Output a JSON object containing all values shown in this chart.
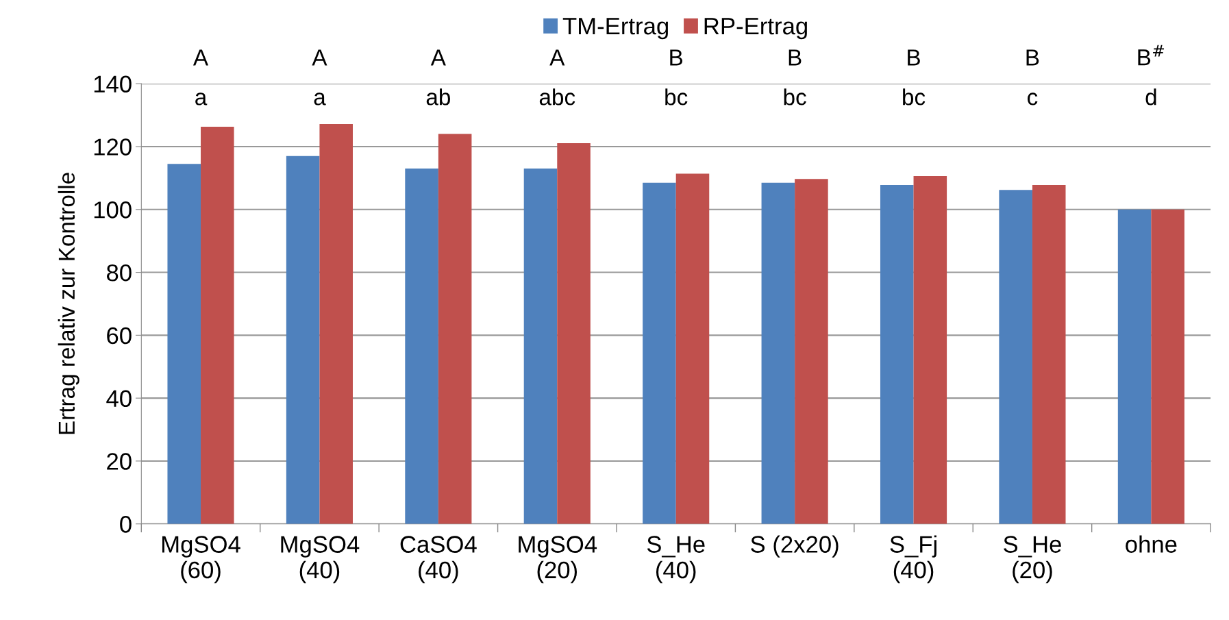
{
  "chart_data": {
    "type": "bar",
    "ylabel": "Ertrag relativ zur Kontrolle",
    "categories": [
      "MgSO4\n(60)",
      "MgSO4\n(40)",
      "CaSO4\n(40)",
      "MgSO4\n(20)",
      "S_He\n(40)",
      "S (2x20)",
      "S_Fj\n(40)",
      "S_He\n(20)",
      "ohne"
    ],
    "series": [
      {
        "name": "TM-Ertrag",
        "color": "#4f81bd",
        "values": [
          114.5,
          117,
          113,
          113,
          108.5,
          108.5,
          107.8,
          106.2,
          100
        ]
      },
      {
        "name": "RP-Ertrag",
        "color": "#c0504d",
        "values": [
          126.3,
          127.2,
          124,
          121.1,
          111.4,
          109.7,
          110.6,
          107.8,
          100
        ]
      }
    ],
    "ylim": [
      0,
      140
    ],
    "yticks": [
      0,
      20,
      40,
      60,
      80,
      100,
      120,
      140
    ],
    "grid": "y",
    "legend": "top",
    "annotations": [
      "A",
      "A",
      "A",
      "A",
      "B",
      "B",
      "B",
      "B",
      "B$^{#}$",
      "a",
      "a",
      "ab",
      "abc",
      "bc",
      "bc",
      "bc",
      "c",
      "d"
    ]
  }
}
